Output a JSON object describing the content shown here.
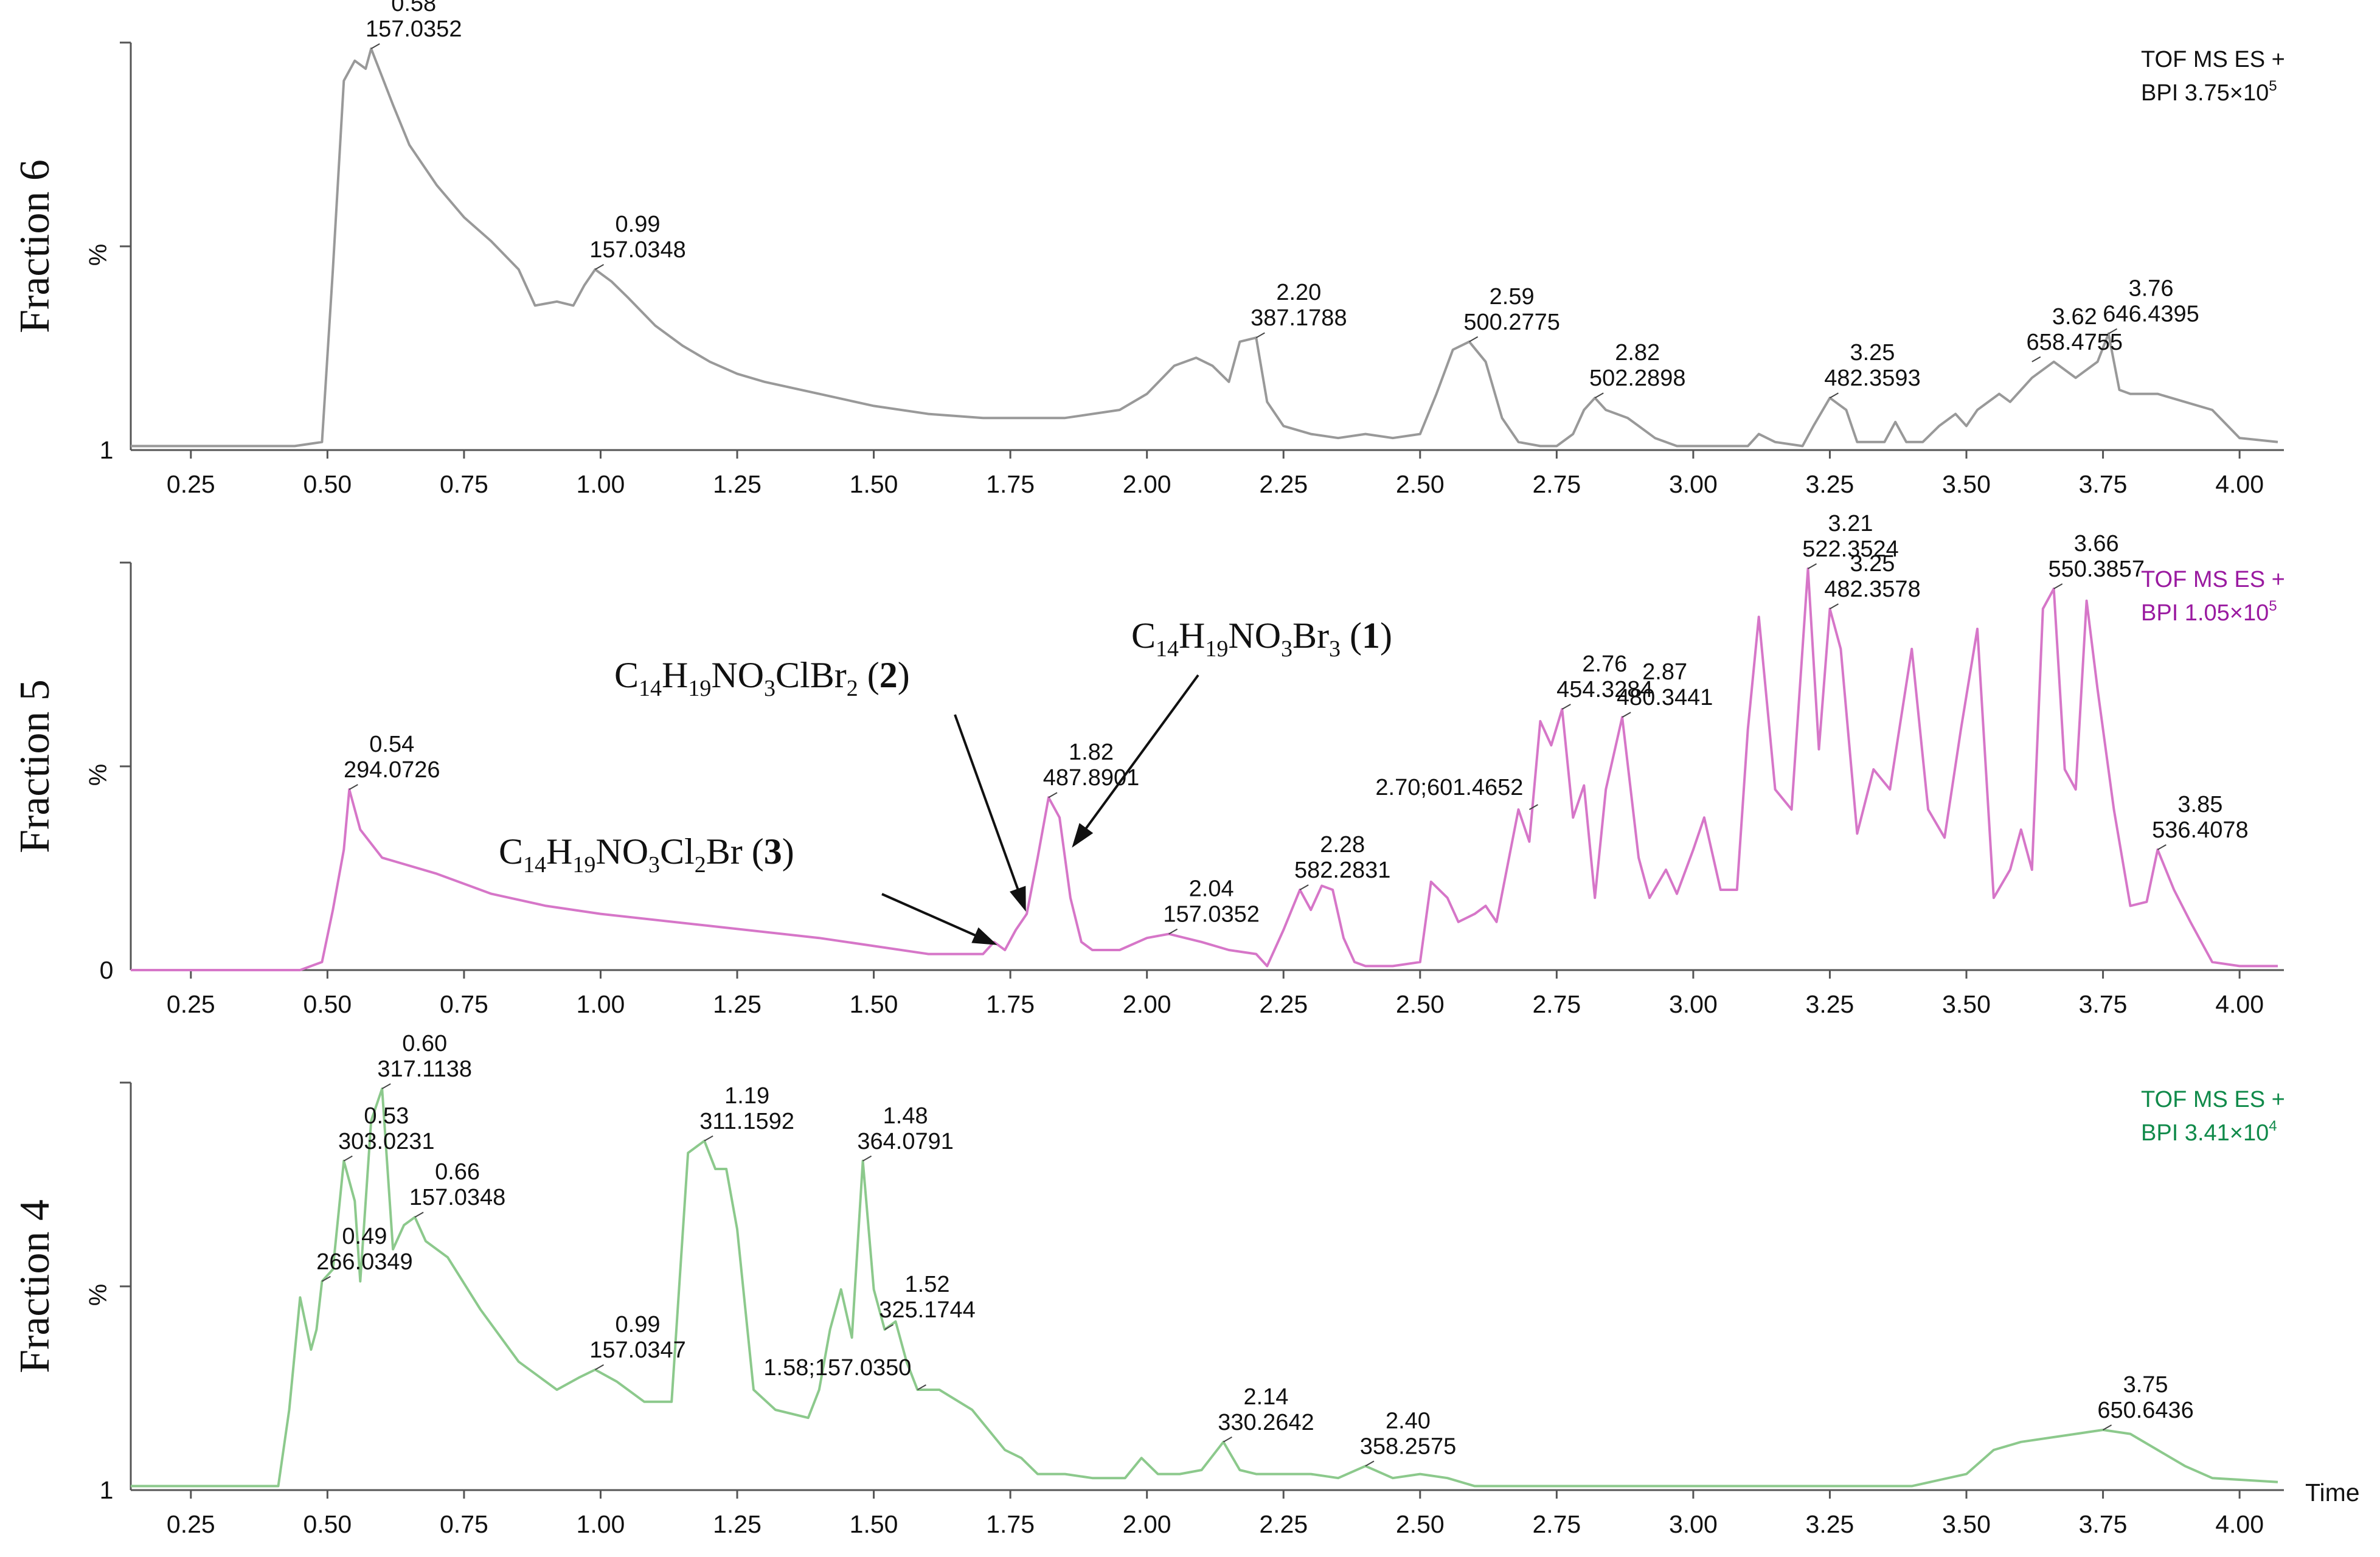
{
  "chart_data": [
    {
      "type": "line",
      "panel_label": "Fraction 6",
      "ylabel": "%",
      "y_bottom_label": "1",
      "xlabel": "",
      "xlim": [
        0.14,
        4.07
      ],
      "ylim": [
        0,
        100
      ],
      "x_ticks": [
        "0.25",
        "0.50",
        "0.75",
        "1.00",
        "1.25",
        "1.50",
        "1.75",
        "2.00",
        "2.25",
        "2.50",
        "2.75",
        "3.00",
        "3.25",
        "3.50",
        "3.75",
        "4.00"
      ],
      "instrument": {
        "line1": "TOF MS ES +",
        "line2_pre": "BPI 3.75×10",
        "exp": "5"
      },
      "color": "#999999",
      "series": [
        {
          "x": [
            0.14,
            0.44,
            0.49,
            0.51,
            0.53,
            0.55,
            0.57,
            0.58,
            0.6,
            0.62,
            0.65,
            0.7,
            0.75,
            0.8,
            0.85,
            0.88,
            0.92,
            0.95,
            0.97,
            0.99,
            1.02,
            1.05,
            1.1,
            1.15,
            1.2,
            1.25,
            1.3,
            1.4,
            1.5,
            1.6,
            1.7,
            1.75,
            1.85,
            1.95,
            2.0,
            2.05,
            2.09,
            2.12,
            2.15,
            2.17,
            2.2,
            2.22,
            2.25,
            2.3,
            2.35,
            2.4,
            2.45,
            2.5,
            2.53,
            2.56,
            2.59,
            2.62,
            2.65,
            2.68,
            2.72,
            2.75,
            2.78,
            2.8,
            2.82,
            2.84,
            2.86,
            2.88,
            2.9,
            2.93,
            2.97,
            3.0,
            3.05,
            3.1,
            3.12,
            3.15,
            3.2,
            3.22,
            3.25,
            3.28,
            3.3,
            3.35,
            3.37,
            3.39,
            3.42,
            3.45,
            3.48,
            3.5,
            3.52,
            3.56,
            3.58,
            3.62,
            3.66,
            3.7,
            3.72,
            3.74,
            3.76,
            3.78,
            3.8,
            3.85,
            3.9,
            3.95,
            4.0,
            4.07
          ],
          "values": [
            1,
            1,
            2,
            45,
            92,
            97,
            95,
            100,
            93,
            86,
            76,
            66,
            58,
            52,
            45,
            36,
            37,
            36,
            41,
            45,
            42,
            38,
            31,
            26,
            22,
            19,
            17,
            14,
            11,
            9,
            8,
            8,
            8,
            10,
            14,
            21,
            23,
            21,
            17,
            27,
            28,
            12,
            6,
            4,
            3,
            4,
            3,
            4,
            14,
            25,
            27,
            22,
            8,
            2,
            1,
            1,
            4,
            10,
            13,
            10,
            9,
            8,
            6,
            3,
            1,
            1,
            1,
            1,
            4,
            2,
            1,
            6,
            13,
            10,
            2,
            2,
            7,
            2,
            2,
            6,
            9,
            6,
            10,
            14,
            12,
            18,
            22,
            18,
            20,
            22,
            29,
            15,
            14,
            14,
            12,
            10,
            3,
            2
          ]
        }
      ],
      "peak_labels": [
        {
          "rt": "0.58",
          "mz": "157.0352",
          "x": 0.58,
          "y": 100
        },
        {
          "rt": "0.99",
          "mz": "157.0348",
          "x": 0.99,
          "y": 45
        },
        {
          "rt": "2.20",
          "mz": "387.1788",
          "x": 2.2,
          "y": 28
        },
        {
          "rt": "2.59",
          "mz": "500.2775",
          "x": 2.59,
          "y": 27
        },
        {
          "rt": "2.82",
          "mz": "502.2898",
          "x": 2.82,
          "y": 13
        },
        {
          "rt": "3.25",
          "mz": "482.3593",
          "x": 3.25,
          "y": 13
        },
        {
          "rt": "3.62",
          "mz": "658.4755",
          "x": 3.62,
          "y": 22
        },
        {
          "rt": "3.76",
          "mz": "646.4395",
          "x": 3.76,
          "y": 29
        }
      ]
    },
    {
      "type": "line",
      "panel_label": "Fraction 5",
      "ylabel": "%",
      "y_bottom_label": "0",
      "xlabel": "",
      "xlim": [
        0.14,
        4.07
      ],
      "ylim": [
        0,
        100
      ],
      "x_ticks": [
        "0.25",
        "0.50",
        "0.75",
        "1.00",
        "1.25",
        "1.50",
        "1.75",
        "2.00",
        "2.25",
        "2.50",
        "2.75",
        "3.00",
        "3.25",
        "3.50",
        "3.75",
        "4.00"
      ],
      "instrument": {
        "line1": "TOF MS ES +",
        "line2_pre": "BPI 1.05×10",
        "exp": "5"
      },
      "color": "#d676c8",
      "series": [
        {
          "x": [
            0.14,
            0.45,
            0.49,
            0.51,
            0.53,
            0.54,
            0.56,
            0.6,
            0.7,
            0.8,
            0.9,
            1.0,
            1.2,
            1.4,
            1.6,
            1.7,
            1.72,
            1.74,
            1.76,
            1.78,
            1.8,
            1.82,
            1.84,
            1.86,
            1.88,
            1.9,
            1.95,
            2.0,
            2.04,
            2.1,
            2.15,
            2.2,
            2.22,
            2.25,
            2.28,
            2.3,
            2.32,
            2.34,
            2.36,
            2.38,
            2.4,
            2.45,
            2.5,
            2.52,
            2.55,
            2.57,
            2.6,
            2.62,
            2.64,
            2.66,
            2.68,
            2.7,
            2.72,
            2.74,
            2.76,
            2.78,
            2.8,
            2.82,
            2.84,
            2.87,
            2.9,
            2.92,
            2.95,
            2.97,
            3.0,
            3.02,
            3.05,
            3.08,
            3.1,
            3.12,
            3.15,
            3.18,
            3.21,
            3.23,
            3.25,
            3.27,
            3.3,
            3.33,
            3.36,
            3.4,
            3.43,
            3.46,
            3.49,
            3.52,
            3.55,
            3.58,
            3.6,
            3.62,
            3.64,
            3.66,
            3.68,
            3.7,
            3.72,
            3.74,
            3.77,
            3.8,
            3.83,
            3.85,
            3.88,
            3.91,
            3.95,
            4.0,
            4.07
          ],
          "values": [
            0,
            0,
            2,
            15,
            30,
            45,
            35,
            28,
            24,
            19,
            16,
            14,
            11,
            8,
            4,
            4,
            7,
            5,
            10,
            14,
            28,
            43,
            38,
            18,
            7,
            5,
            5,
            8,
            9,
            7,
            5,
            4,
            1,
            10,
            20,
            15,
            21,
            20,
            8,
            2,
            1,
            1,
            2,
            22,
            18,
            12,
            14,
            16,
            12,
            26,
            40,
            32,
            62,
            56,
            65,
            38,
            46,
            18,
            45,
            63,
            28,
            18,
            25,
            19,
            30,
            38,
            20,
            20,
            60,
            88,
            45,
            40,
            100,
            55,
            90,
            80,
            34,
            50,
            45,
            80,
            40,
            33,
            60,
            85,
            18,
            25,
            35,
            25,
            90,
            95,
            50,
            45,
            92,
            70,
            40,
            16,
            17,
            30,
            20,
            12,
            2,
            1,
            1
          ]
        }
      ],
      "peak_labels": [
        {
          "rt": "0.54",
          "mz": "294.0726",
          "x": 0.54,
          "y": 45
        },
        {
          "rt": "1.82",
          "mz": "487.8901",
          "x": 1.82,
          "y": 43
        },
        {
          "rt": "2.04",
          "mz": "157.0352",
          "x": 2.04,
          "y": 9
        },
        {
          "rt": "2.28",
          "mz": "582.2831",
          "x": 2.28,
          "y": 20
        },
        {
          "rt": "2.70;601.4652",
          "mz": "",
          "x": 2.7,
          "y": 40
        },
        {
          "rt": "2.76",
          "mz": "454.3284",
          "x": 2.76,
          "y": 65
        },
        {
          "rt": "2.87",
          "mz": "480.3441",
          "x": 2.87,
          "y": 63
        },
        {
          "rt": "3.21",
          "mz": "522.3524",
          "x": 3.21,
          "y": 100
        },
        {
          "rt": "3.25",
          "mz": "482.3578",
          "x": 3.25,
          "y": 90
        },
        {
          "rt": "3.66",
          "mz": "550.3857",
          "x": 3.66,
          "y": 95
        },
        {
          "rt": "3.85",
          "mz": "536.4078",
          "x": 3.85,
          "y": 30
        }
      ],
      "annotations": [
        {
          "base": "C",
          "sub1": "14",
          "mid1": "H",
          "sub2": "19",
          "mid2": "NO",
          "sub3": "3",
          "tail": "ClBr",
          "sub4": "2",
          "compound": "2"
        },
        {
          "base": "C",
          "sub1": "14",
          "mid1": "H",
          "sub2": "19",
          "mid2": "NO",
          "sub3": "3",
          "tail": "Br",
          "sub4": "3",
          "compound": "1"
        },
        {
          "base": "C",
          "sub1": "14",
          "mid1": "H",
          "sub2": "19",
          "mid2": "NO",
          "sub3": "3",
          "tail": "Cl",
          "sub4": "2",
          "tail2": "Br",
          "compound": "3"
        }
      ]
    },
    {
      "type": "line",
      "panel_label": "Fraction 4",
      "ylabel": "%",
      "y_bottom_label": "1",
      "xlabel": "Time",
      "xlim": [
        0.14,
        4.07
      ],
      "ylim": [
        0,
        100
      ],
      "x_ticks": [
        "0.25",
        "0.50",
        "0.75",
        "1.00",
        "1.25",
        "1.50",
        "1.75",
        "2.00",
        "2.25",
        "2.50",
        "2.75",
        "3.00",
        "3.25",
        "3.50",
        "3.75",
        "4.00"
      ],
      "instrument": {
        "line1": "TOF MS ES +",
        "line2_pre": "BPI 3.41×10",
        "exp": "4"
      },
      "color": "#8cc98c",
      "series": [
        {
          "x": [
            0.14,
            0.41,
            0.43,
            0.45,
            0.47,
            0.48,
            0.49,
            0.51,
            0.53,
            0.55,
            0.56,
            0.58,
            0.6,
            0.62,
            0.64,
            0.66,
            0.68,
            0.72,
            0.78,
            0.85,
            0.92,
            0.96,
            0.99,
            1.03,
            1.08,
            1.13,
            1.16,
            1.19,
            1.21,
            1.23,
            1.25,
            1.28,
            1.32,
            1.38,
            1.4,
            1.42,
            1.44,
            1.46,
            1.48,
            1.5,
            1.52,
            1.54,
            1.56,
            1.58,
            1.62,
            1.68,
            1.74,
            1.77,
            1.8,
            1.85,
            1.9,
            1.96,
            1.99,
            2.02,
            2.06,
            2.1,
            2.14,
            2.17,
            2.2,
            2.25,
            2.3,
            2.35,
            2.4,
            2.45,
            2.5,
            2.55,
            2.6,
            2.7,
            2.8,
            2.9,
            3.0,
            3.2,
            3.4,
            3.5,
            3.55,
            3.6,
            3.7,
            3.75,
            3.8,
            3.85,
            3.9,
            3.95,
            4.07
          ],
          "values": [
            1,
            1,
            20,
            48,
            35,
            40,
            52,
            55,
            82,
            72,
            52,
            92,
            100,
            60,
            66,
            68,
            62,
            58,
            45,
            32,
            25,
            28,
            30,
            27,
            22,
            22,
            84,
            87,
            80,
            80,
            65,
            25,
            20,
            18,
            25,
            40,
            50,
            38,
            82,
            50,
            40,
            42,
            32,
            25,
            25,
            20,
            10,
            8,
            4,
            4,
            3,
            3,
            8,
            4,
            4,
            5,
            12,
            5,
            4,
            4,
            4,
            3,
            6,
            3,
            4,
            3,
            1,
            1,
            1,
            1,
            1,
            1,
            1,
            4,
            10,
            12,
            14,
            15,
            14,
            10,
            6,
            3,
            2
          ]
        }
      ],
      "peak_labels": [
        {
          "rt": "0.49",
          "mz": "266.0349",
          "x": 0.49,
          "y": 52
        },
        {
          "rt": "0.53",
          "mz": "303.0231",
          "x": 0.53,
          "y": 82
        },
        {
          "rt": "0.60",
          "mz": "317.1138",
          "x": 0.6,
          "y": 100
        },
        {
          "rt": "0.66",
          "mz": "157.0348",
          "x": 0.66,
          "y": 68
        },
        {
          "rt": "0.99",
          "mz": "157.0347",
          "x": 0.99,
          "y": 30
        },
        {
          "rt": "1.19",
          "mz": "311.1592",
          "x": 1.19,
          "y": 87
        },
        {
          "rt": "1.48",
          "mz": "364.0791",
          "x": 1.48,
          "y": 82
        },
        {
          "rt": "1.52",
          "mz": "325.1744",
          "x": 1.52,
          "y": 40
        },
        {
          "rt": "1.58;157.0350",
          "mz": "",
          "x": 1.58,
          "y": 25
        },
        {
          "rt": "2.14",
          "mz": "330.2642",
          "x": 2.14,
          "y": 12
        },
        {
          "rt": "2.40",
          "mz": "358.2575",
          "x": 2.4,
          "y": 6
        },
        {
          "rt": "3.75",
          "mz": "650.6436",
          "x": 3.75,
          "y": 15
        }
      ]
    }
  ]
}
